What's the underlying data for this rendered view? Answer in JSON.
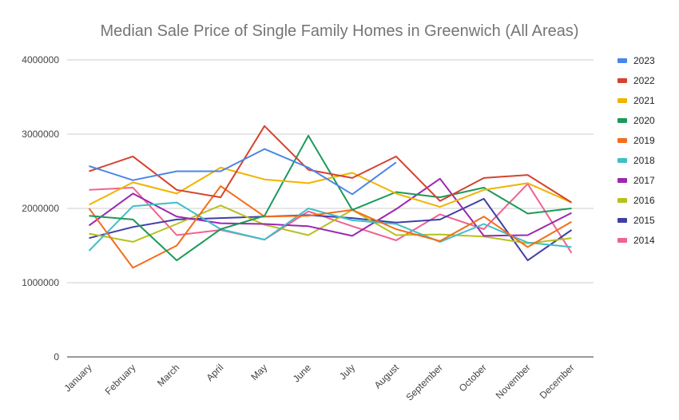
{
  "chart_data": {
    "type": "line",
    "title": "Median Sale Price of Single Family Homes in Greenwich (All Areas)",
    "xlabel": "",
    "ylabel": "",
    "ylim": [
      0,
      4000000
    ],
    "yticks": [
      0,
      1000000,
      2000000,
      3000000,
      4000000
    ],
    "ytick_labels": [
      "0",
      "1000000",
      "2000000",
      "3000000",
      "4000000"
    ],
    "grid": true,
    "legend_position": "right",
    "categories": [
      "January",
      "February",
      "March",
      "April",
      "May",
      "June",
      "July",
      "August",
      "September",
      "October",
      "November",
      "December"
    ],
    "series": [
      {
        "name": "2023",
        "color": "#4a86e8",
        "values": [
          2570000,
          2380000,
          2500000,
          2500000,
          2800000,
          2550000,
          2190000,
          2620000,
          null,
          null,
          null,
          null
        ]
      },
      {
        "name": "2022",
        "color": "#d4432f",
        "values": [
          2500000,
          2700000,
          2250000,
          2150000,
          3110000,
          2520000,
          2410000,
          2700000,
          2100000,
          2410000,
          2450000,
          2080000
        ]
      },
      {
        "name": "2021",
        "color": "#f1b300",
        "values": [
          2050000,
          2350000,
          2200000,
          2550000,
          2390000,
          2340000,
          2480000,
          2200000,
          2020000,
          2250000,
          2340000,
          2080000
        ]
      },
      {
        "name": "2020",
        "color": "#1b9a59",
        "values": [
          1900000,
          1850000,
          1300000,
          1720000,
          1900000,
          2980000,
          1980000,
          2220000,
          2150000,
          2280000,
          1930000,
          2000000
        ]
      },
      {
        "name": "2019",
        "color": "#f46d1b",
        "values": [
          2000000,
          1200000,
          1500000,
          2300000,
          1890000,
          1900000,
          1980000,
          1720000,
          1560000,
          1890000,
          1480000,
          1820000
        ]
      },
      {
        "name": "2018",
        "color": "#3fbfc6",
        "values": [
          1430000,
          2030000,
          2080000,
          1720000,
          1580000,
          2000000,
          1840000,
          1790000,
          1550000,
          1790000,
          1540000,
          1480000
        ]
      },
      {
        "name": "2017",
        "color": "#9c27b0",
        "values": [
          1770000,
          2200000,
          1890000,
          1800000,
          1790000,
          1760000,
          1630000,
          1990000,
          2400000,
          1630000,
          1640000,
          1940000
        ]
      },
      {
        "name": "2016",
        "color": "#b5c21e",
        "values": [
          1660000,
          1550000,
          1790000,
          2040000,
          1780000,
          1640000,
          1980000,
          1640000,
          1650000,
          1620000,
          1530000,
          1600000
        ]
      },
      {
        "name": "2015",
        "color": "#3f3fa6",
        "values": [
          1600000,
          1750000,
          1850000,
          1870000,
          1890000,
          1910000,
          1870000,
          1810000,
          1850000,
          2130000,
          1300000,
          1710000
        ]
      },
      {
        "name": "2014",
        "color": "#f06292",
        "values": [
          2250000,
          2280000,
          1640000,
          1710000,
          1580000,
          1960000,
          1760000,
          1570000,
          1920000,
          1720000,
          2330000,
          1400000
        ]
      }
    ]
  }
}
